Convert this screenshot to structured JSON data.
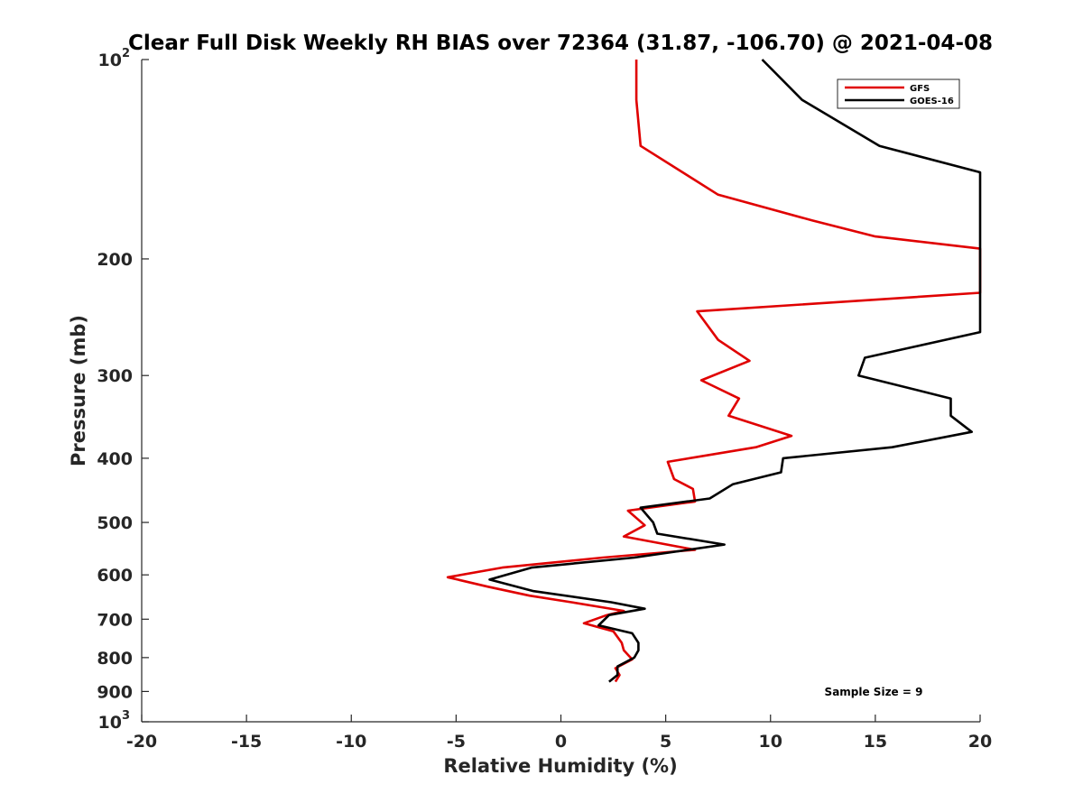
{
  "chart_data": {
    "type": "line",
    "title": "Clear Full Disk Weekly RH BIAS over 72364 (31.87, -106.70) @ 2021-04-08",
    "xlabel": "Relative Humidity (%)",
    "ylabel": "Pressure (mb)",
    "xlim": [
      -20,
      20
    ],
    "ylim": [
      100,
      1000
    ],
    "y_scale": "log",
    "y_reversed": true,
    "grid": false,
    "legend_position": "top-right",
    "x_ticks": [
      {
        "value": -20,
        "label": "-20"
      },
      {
        "value": -15,
        "label": "-15"
      },
      {
        "value": -10,
        "label": "-10"
      },
      {
        "value": -5,
        "label": "-5"
      },
      {
        "value": 0,
        "label": "0"
      },
      {
        "value": 5,
        "label": "5"
      },
      {
        "value": 10,
        "label": "10"
      },
      {
        "value": 15,
        "label": "15"
      },
      {
        "value": 20,
        "label": "20"
      }
    ],
    "y_ticks": [
      {
        "value": 100,
        "base": "10",
        "exp": "2"
      },
      {
        "value": 200,
        "label": "200"
      },
      {
        "value": 300,
        "label": "300"
      },
      {
        "value": 400,
        "label": "400"
      },
      {
        "value": 500,
        "label": "500"
      },
      {
        "value": 600,
        "label": "600"
      },
      {
        "value": 700,
        "label": "700"
      },
      {
        "value": 800,
        "label": "800"
      },
      {
        "value": 900,
        "label": "900"
      },
      {
        "value": 1000,
        "base": "10",
        "exp": "3"
      }
    ],
    "annotation": "Sample Size = 9",
    "series": [
      {
        "name": "GFS",
        "color": "#e00000",
        "points": [
          [
            3.6,
            100
          ],
          [
            3.6,
            115
          ],
          [
            3.8,
            135
          ],
          [
            7.5,
            160
          ],
          [
            12,
            175
          ],
          [
            15,
            185
          ],
          [
            20,
            193
          ],
          [
            20,
            225
          ],
          [
            6.5,
            240
          ],
          [
            7.5,
            265
          ],
          [
            9,
            285
          ],
          [
            6.7,
            305
          ],
          [
            8.5,
            325
          ],
          [
            8,
            345
          ],
          [
            11,
            370
          ],
          [
            9.3,
            385
          ],
          [
            5.1,
            405
          ],
          [
            5.4,
            430
          ],
          [
            6.3,
            445
          ],
          [
            6.4,
            465
          ],
          [
            3.2,
            480
          ],
          [
            4,
            505
          ],
          [
            3,
            525
          ],
          [
            6.4,
            550
          ],
          [
            2,
            565
          ],
          [
            -2.8,
            585
          ],
          [
            -5.4,
            605
          ],
          [
            -3.5,
            625
          ],
          [
            -1.5,
            645
          ],
          [
            0.5,
            660
          ],
          [
            3,
            680
          ],
          [
            2.2,
            690
          ],
          [
            1.1,
            710
          ],
          [
            2.5,
            730
          ],
          [
            2.9,
            760
          ],
          [
            3,
            780
          ],
          [
            3.4,
            805
          ],
          [
            2.6,
            830
          ],
          [
            2.8,
            850
          ],
          [
            2.6,
            870
          ]
        ]
      },
      {
        "name": "GOES-16",
        "color": "#000000",
        "points": [
          [
            9.6,
            100
          ],
          [
            11.5,
            115
          ],
          [
            15.2,
            135
          ],
          [
            20,
            148
          ],
          [
            20,
            258
          ],
          [
            14.5,
            282
          ],
          [
            14.2,
            300
          ],
          [
            18.6,
            325
          ],
          [
            18.6,
            345
          ],
          [
            19.6,
            365
          ],
          [
            15.8,
            385
          ],
          [
            10.6,
            400
          ],
          [
            10.5,
            420
          ],
          [
            8.2,
            438
          ],
          [
            7.1,
            460
          ],
          [
            3.8,
            475
          ],
          [
            4.4,
            500
          ],
          [
            4.6,
            520
          ],
          [
            7.8,
            540
          ],
          [
            3.5,
            565
          ],
          [
            -1.4,
            585
          ],
          [
            -3.4,
            610
          ],
          [
            -1.3,
            635
          ],
          [
            2.4,
            660
          ],
          [
            4,
            675
          ],
          [
            2.3,
            690
          ],
          [
            1.8,
            715
          ],
          [
            3.4,
            735
          ],
          [
            3.7,
            760
          ],
          [
            3.7,
            780
          ],
          [
            3.5,
            800
          ],
          [
            2.7,
            825
          ],
          [
            2.7,
            850
          ],
          [
            2.3,
            870
          ]
        ]
      }
    ]
  }
}
